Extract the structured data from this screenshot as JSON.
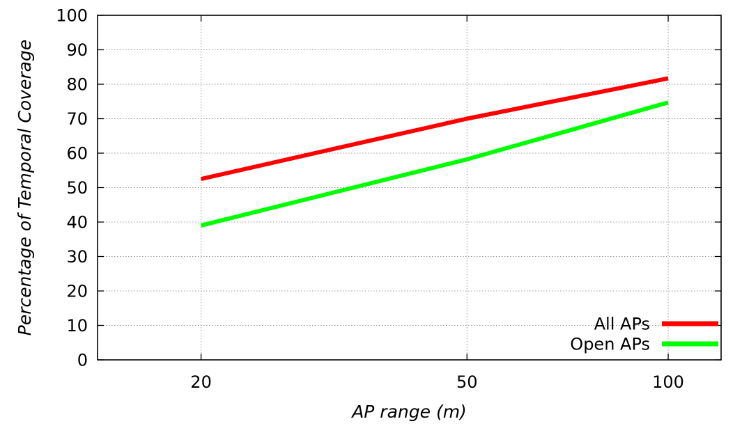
{
  "chart_data": {
    "type": "line",
    "title": "",
    "xlabel": "AP range (m)",
    "ylabel": "Percentage of Temporal Coverage",
    "x_scale": "log",
    "x": [
      20,
      50,
      100
    ],
    "x_ticks": [
      "20",
      "50",
      "100"
    ],
    "xlim": [
      14,
      120
    ],
    "ylim": [
      0,
      100
    ],
    "y_ticks": [
      "0",
      "10",
      "20",
      "30",
      "40",
      "50",
      "60",
      "70",
      "80",
      "90",
      "100"
    ],
    "grid": true,
    "legend_position": "bottom-right",
    "series": [
      {
        "name": "All APs",
        "color": "#ff0000",
        "values": [
          52.5,
          70,
          81.7
        ]
      },
      {
        "name": "Open APs",
        "color": "#00ff00",
        "values": [
          39,
          58.2,
          74.7
        ]
      }
    ]
  }
}
